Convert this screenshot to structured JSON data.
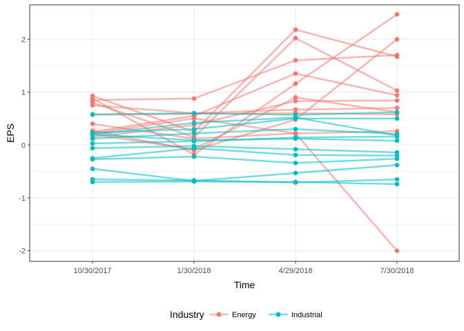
{
  "chart_data": {
    "type": "line",
    "title": "",
    "xlabel": "Time",
    "ylabel": "EPS",
    "categories": [
      "10/30/2017",
      "1/30/2018",
      "4/29/2018",
      "7/30/2018"
    ],
    "y_ticks": [
      "-2",
      "-1",
      "0",
      "1",
      "2"
    ],
    "y_tick_values": [
      -2,
      -1,
      0,
      1,
      2
    ],
    "ylim": [
      -2.2,
      2.65
    ],
    "grid": true,
    "legend": {
      "title": "Industry",
      "position": "bottom",
      "entries": [
        {
          "name": "Energy",
          "color": "#F8766D"
        },
        {
          "name": "Industrial",
          "color": "#00BFC4"
        }
      ]
    },
    "groups": [
      {
        "name": "Energy",
        "color": "#F8766D",
        "series": [
          [
            0.93,
            0.25,
            2.18,
            1.67
          ],
          [
            0.85,
            0.88,
            1.6,
            1.7
          ],
          [
            0.8,
            0.15,
            2.02,
            1.03
          ],
          [
            0.75,
            0.6,
            0.67,
            0.7
          ],
          [
            0.4,
            0.12,
            0.22,
            0.26
          ],
          [
            0.25,
            0.55,
            1.35,
            0.94
          ],
          [
            0.2,
            -0.08,
            0.9,
            0.62
          ],
          [
            0.15,
            0.38,
            0.83,
            0.84
          ],
          [
            0.88,
            -0.18,
            1.16,
            2.47
          ],
          [
            0.22,
            0.5,
            0.22,
            -2.0
          ],
          [
            0.57,
            0.59,
            0.6,
            0.58
          ],
          [
            0.27,
            -0.1,
            0.48,
            2.0
          ]
        ]
      },
      {
        "name": "Industrial",
        "color": "#00BFC4",
        "series": [
          [
            0.58,
            0.6,
            0.57,
            0.62
          ],
          [
            0.23,
            0.3,
            0.5,
            0.5
          ],
          [
            0.2,
            0.42,
            0.52,
            0.18
          ],
          [
            0.12,
            0.22,
            0.3,
            0.21
          ],
          [
            0.03,
            0.07,
            0.14,
            0.16
          ],
          [
            -0.06,
            -0.02,
            -0.08,
            -0.14
          ],
          [
            -0.27,
            -0.22,
            -0.34,
            -0.26
          ],
          [
            -0.25,
            -0.06,
            -0.19,
            -0.2
          ],
          [
            -0.45,
            -0.68,
            -0.53,
            -0.38
          ],
          [
            -0.65,
            -0.67,
            -0.71,
            -0.65
          ],
          [
            -0.7,
            -0.69,
            -0.7,
            -0.74
          ],
          [
            0.2,
            0.09,
            0.12,
            0.08
          ]
        ]
      }
    ]
  }
}
